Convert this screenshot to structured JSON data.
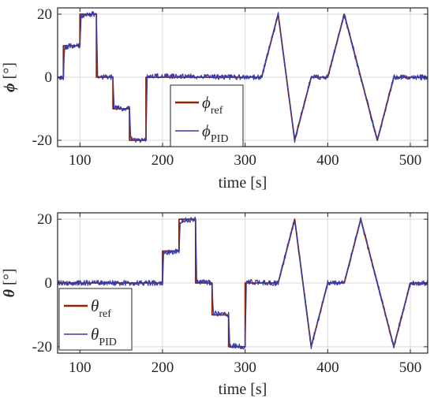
{
  "colors": {
    "ref": "#8B2500",
    "pid": "#3A3AA8",
    "grid": "#DADADA",
    "axis": "#262626"
  },
  "chart_data": [
    {
      "type": "line",
      "ylabel": {
        "symbol": "ϕ",
        "unit": "[°]"
      },
      "xlabel": "time [s]",
      "xlim": [
        73,
        521
      ],
      "ylim": [
        -22,
        22
      ],
      "xticks": [
        100,
        200,
        300,
        400,
        500
      ],
      "yticks": [
        -20,
        0,
        20
      ],
      "grid": true,
      "legend_position": "bottom-left-center",
      "series": [
        {
          "name": {
            "symbol": "ϕ",
            "sub": "ref"
          },
          "role": "ref",
          "x": [
            73,
            80,
            80,
            90,
            90,
            100,
            100,
            110,
            110,
            120,
            120,
            130,
            130,
            140,
            140,
            150,
            150,
            160,
            160,
            170,
            170,
            180,
            180,
            300,
            320,
            340,
            360,
            380,
            400,
            420,
            440,
            460,
            480,
            500,
            521
          ],
          "y": [
            0,
            0,
            10,
            10,
            10,
            10,
            20,
            20,
            20,
            20,
            0,
            0,
            0,
            0,
            -10,
            -10,
            -10,
            -10,
            -20,
            -20,
            -20,
            -20,
            0,
            0,
            0,
            20,
            -20,
            0,
            0,
            20,
            0,
            -20,
            0,
            0,
            0
          ]
        },
        {
          "name": {
            "symbol": "ϕ",
            "sub": "PID"
          },
          "role": "pid",
          "x": [
            73,
            80,
            81.5,
            90,
            100,
            101.5,
            110,
            120,
            121.5,
            130,
            140,
            141.5,
            150,
            160,
            161.5,
            170,
            180,
            181.5,
            300,
            320,
            340,
            360,
            380,
            400,
            420,
            440,
            460,
            480,
            500,
            521
          ],
          "y": [
            0,
            0,
            9.5,
            10,
            10,
            19.5,
            20,
            20,
            0.5,
            0,
            0,
            -9.5,
            -10,
            -10,
            -19.5,
            -20,
            -20,
            0.5,
            0,
            0,
            20,
            -20,
            0,
            0,
            20,
            0,
            -20,
            0,
            0,
            0
          ]
        }
      ]
    },
    {
      "type": "line",
      "ylabel": {
        "symbol": "θ",
        "unit": "[°]"
      },
      "xlabel": "time [s]",
      "xlim": [
        73,
        521
      ],
      "ylim": [
        -22,
        22
      ],
      "xticks": [
        100,
        200,
        300,
        400,
        500
      ],
      "yticks": [
        -20,
        0,
        20
      ],
      "grid": true,
      "legend_position": "bottom-left",
      "series": [
        {
          "name": {
            "symbol": "θ",
            "sub": "ref"
          },
          "role": "ref",
          "x": [
            73,
            200,
            200,
            220,
            220,
            240,
            240,
            260,
            260,
            280,
            280,
            300,
            300,
            320,
            340,
            360,
            380,
            400,
            420,
            440,
            460,
            480,
            500,
            521
          ],
          "y": [
            0,
            0,
            10,
            10,
            20,
            20,
            0,
            0,
            -10,
            -10,
            -20,
            -20,
            0,
            0,
            0,
            20,
            -20,
            0,
            0,
            20,
            0,
            -20,
            0,
            0
          ]
        },
        {
          "name": {
            "symbol": "θ",
            "sub": "PID"
          },
          "role": "pid",
          "x": [
            73,
            200,
            201.5,
            220,
            221.5,
            240,
            241.5,
            260,
            261.5,
            280,
            281.5,
            300,
            301.5,
            320,
            340,
            360,
            380,
            400,
            420,
            440,
            460,
            480,
            500,
            521
          ],
          "y": [
            0,
            0,
            9.5,
            10,
            19.5,
            20,
            0.5,
            0,
            -9.5,
            -10,
            -19.5,
            -20,
            0.5,
            0,
            0,
            20,
            -20,
            0,
            0,
            20,
            0,
            -20,
            0,
            0
          ]
        }
      ]
    }
  ]
}
